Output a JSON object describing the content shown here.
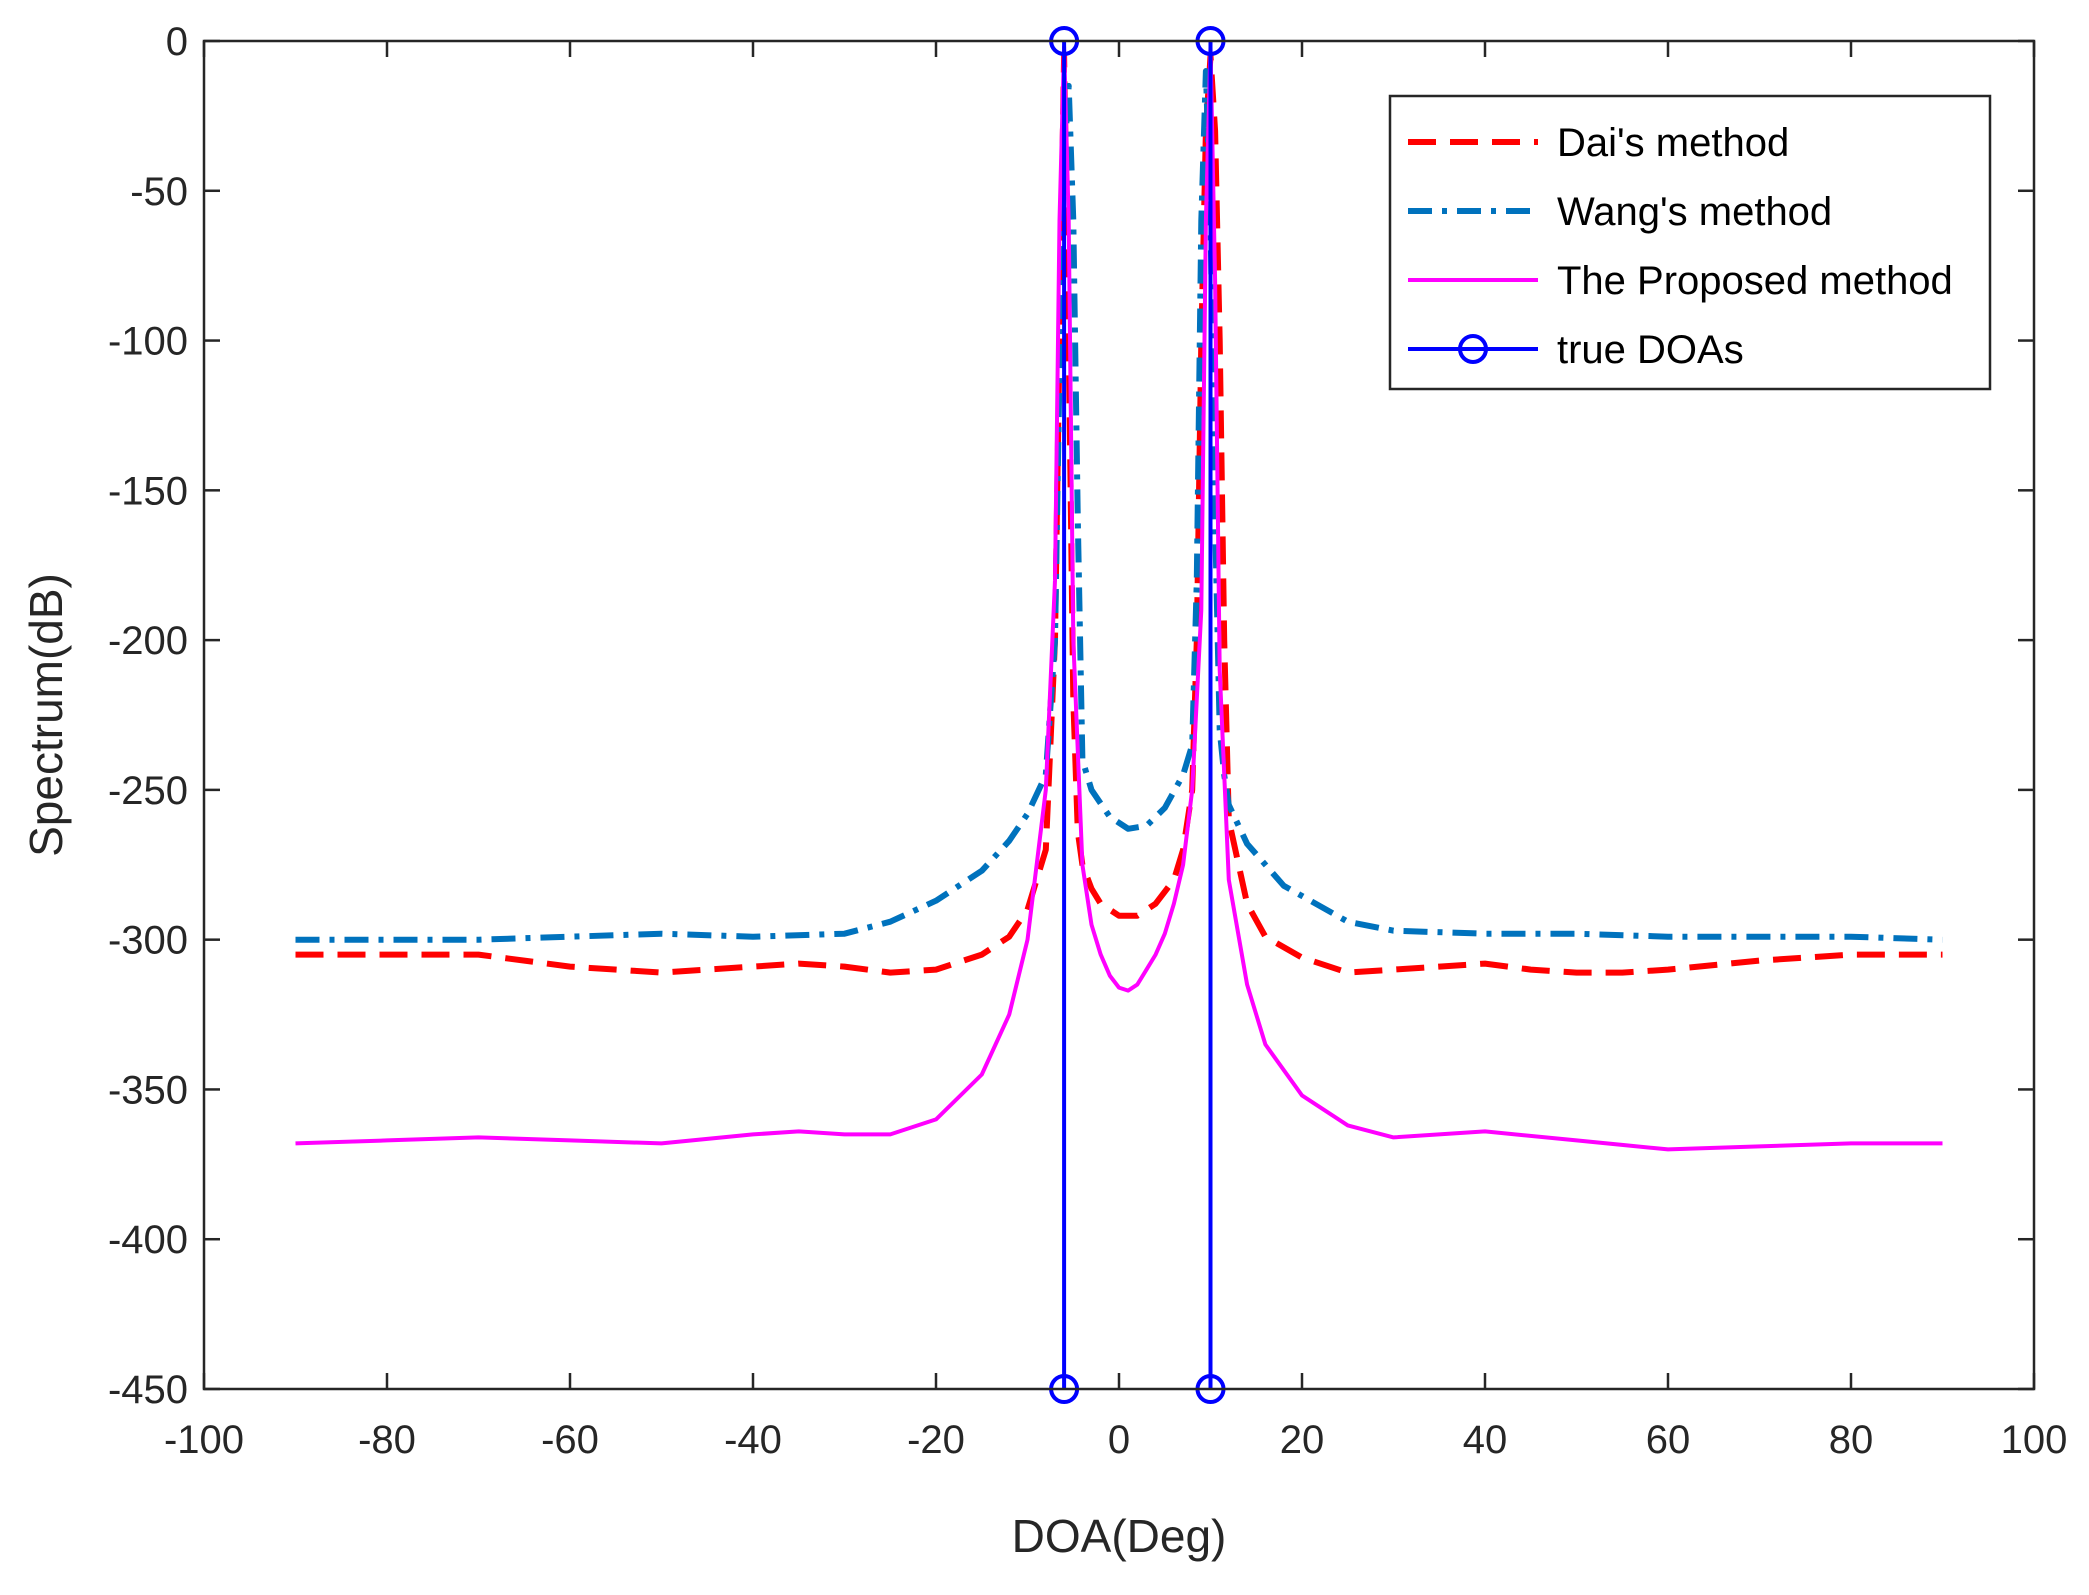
{
  "chart_data": {
    "type": "line",
    "title": "",
    "xlabel": "DOA(Deg)",
    "ylabel": "Spectrum(dB)",
    "xlim": [
      -100,
      100
    ],
    "ylim": [
      -450,
      0
    ],
    "xticks": [
      -100,
      -80,
      -60,
      -40,
      -20,
      0,
      20,
      40,
      60,
      80,
      100
    ],
    "yticks": [
      0,
      -50,
      -100,
      -150,
      -200,
      -250,
      -300,
      -350,
      -400,
      -450
    ],
    "xtick_labels": [
      "-100",
      "-80",
      "-60",
      "-40",
      "-20",
      "0",
      "20",
      "40",
      "60",
      "80",
      "100"
    ],
    "ytick_labels": [
      "0",
      "-50",
      "-100",
      "-150",
      "-200",
      "-250",
      "-300",
      "-350",
      "-400",
      "-450"
    ],
    "grid": false,
    "legend_position": "top-right",
    "series": [
      {
        "name": "Dai's method",
        "color": "#ff0000",
        "style": "dashed",
        "x": [
          -90,
          -80,
          -70,
          -60,
          -50,
          -40,
          -35,
          -30,
          -25,
          -20,
          -15,
          -12,
          -10,
          -8,
          -7,
          -6.5,
          -6,
          -5.5,
          -5,
          -4.5,
          -4,
          -3,
          -2,
          0,
          2,
          4,
          6,
          7,
          8,
          8.5,
          9,
          9.5,
          10,
          10.5,
          11,
          11.5,
          12,
          14,
          16,
          20,
          25,
          30,
          35,
          40,
          45,
          50,
          55,
          60,
          70,
          80,
          90
        ],
        "y": [
          -305,
          -305,
          -305,
          -309,
          -311,
          -309,
          -308,
          -309,
          -311,
          -310,
          -305,
          -299,
          -290,
          -270,
          -200,
          -100,
          -5,
          -100,
          -220,
          -264,
          -275,
          -283,
          -288,
          -292,
          -292,
          -288,
          -280,
          -270,
          -250,
          -200,
          -100,
          -30,
          -5,
          -30,
          -100,
          -200,
          -260,
          -288,
          -299,
          -306,
          -311,
          -310,
          -309,
          -308,
          -310,
          -311,
          -311,
          -310,
          -307,
          -305,
          -305
        ]
      },
      {
        "name": "Wang's method",
        "color": "#0072bd",
        "style": "dashdot",
        "x": [
          -90,
          -80,
          -70,
          -60,
          -50,
          -40,
          -30,
          -25,
          -20,
          -15,
          -12,
          -10,
          -8,
          -7,
          -6.5,
          -6,
          -5.5,
          -5,
          -4.5,
          -4,
          -3,
          -1,
          1,
          3,
          5,
          7,
          8,
          8.5,
          9,
          9.5,
          10,
          10.5,
          11,
          11.5,
          12,
          14,
          18,
          25,
          30,
          40,
          50,
          60,
          70,
          80,
          90
        ],
        "y": [
          -300,
          -300,
          -300,
          -299,
          -298,
          -299,
          -298,
          -294,
          -287,
          -277,
          -267,
          -258,
          -245,
          -200,
          -110,
          -40,
          -15,
          -60,
          -160,
          -240,
          -250,
          -259,
          -263,
          -262,
          -256,
          -245,
          -235,
          -180,
          -60,
          -10,
          -60,
          -160,
          -230,
          -245,
          -255,
          -268,
          -282,
          -294,
          -297,
          -298,
          -298,
          -299,
          -299,
          -299,
          -300
        ]
      },
      {
        "name": "The Proposed method",
        "color": "#ff00ff",
        "style": "solid",
        "x": [
          -90,
          -80,
          -70,
          -60,
          -50,
          -40,
          -35,
          -30,
          -25,
          -20,
          -15,
          -12,
          -10,
          -8,
          -7,
          -6.5,
          -6,
          -5.5,
          -5,
          -4,
          -3,
          -2,
          -1,
          0,
          1,
          2,
          3,
          4,
          5,
          6,
          7,
          8,
          9,
          9.5,
          10,
          10.5,
          11,
          12,
          14,
          16,
          20,
          25,
          30,
          40,
          50,
          60,
          70,
          80,
          90
        ],
        "y": [
          -368,
          -367,
          -366,
          -367,
          -368,
          -365,
          -364,
          -365,
          -365,
          -360,
          -345,
          -325,
          -300,
          -250,
          -180,
          -60,
          -2,
          -60,
          -200,
          -275,
          -295,
          -305,
          -312,
          -316,
          -317,
          -315,
          -310,
          -305,
          -298,
          -288,
          -275,
          -250,
          -190,
          -60,
          -2,
          -80,
          -210,
          -280,
          -315,
          -335,
          -352,
          -362,
          -366,
          -364,
          -367,
          -370,
          -369,
          -368,
          -368
        ]
      }
    ],
    "stems": {
      "name": "true DOAs",
      "color": "#0000ff",
      "x": [
        -6,
        10
      ],
      "y_top": 0,
      "y_bottom": -450
    },
    "legend": [
      "Dai's method",
      "Wang's method",
      "The Proposed method",
      "true DOAs"
    ]
  }
}
